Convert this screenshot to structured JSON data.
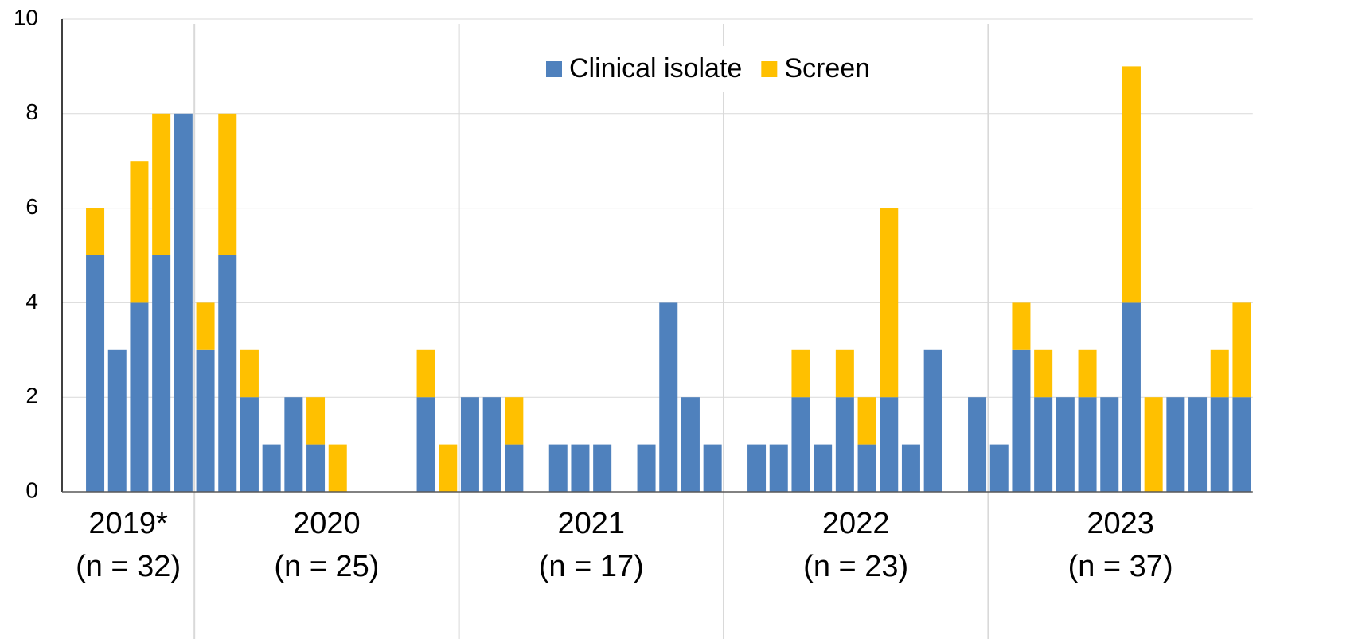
{
  "chart_data": {
    "type": "stacked_bar",
    "groups": [
      {
        "label": "2019*",
        "note": "(n = 32)"
      },
      {
        "label": "2020",
        "note": "(n = 25)"
      },
      {
        "label": "2021",
        "note": "(n = 17)"
      },
      {
        "label": "2022",
        "note": "(n = 23)"
      },
      {
        "label": "2023",
        "note": "(n = 37)"
      }
    ],
    "series": [
      {
        "name": "Clinical isolate",
        "color": "#4f81bd",
        "values": [
          [
            0,
            5,
            3,
            4,
            5,
            8
          ],
          [
            3,
            5,
            2,
            1,
            2,
            1,
            0,
            0,
            0,
            0,
            2,
            0
          ],
          [
            2,
            2,
            1,
            0,
            1,
            1,
            1,
            0,
            1,
            4,
            2,
            1
          ],
          [
            0,
            1,
            1,
            2,
            1,
            2,
            1,
            2,
            1,
            3,
            0,
            2
          ],
          [
            1,
            3,
            2,
            2,
            2,
            2,
            4,
            0,
            2,
            2,
            2,
            2
          ]
        ]
      },
      {
        "name": "Screen",
        "color": "#ffc000",
        "values": [
          [
            0,
            1,
            0,
            3,
            3,
            0
          ],
          [
            1,
            3,
            1,
            0,
            0,
            1,
            1,
            0,
            0,
            0,
            1,
            1
          ],
          [
            0,
            0,
            1,
            0,
            0,
            0,
            0,
            0,
            0,
            0,
            0,
            0
          ],
          [
            0,
            0,
            0,
            1,
            0,
            1,
            1,
            4,
            0,
            0,
            0,
            0
          ],
          [
            0,
            1,
            1,
            0,
            1,
            0,
            5,
            2,
            0,
            0,
            1,
            2
          ]
        ]
      }
    ],
    "ylim": [
      0,
      10
    ],
    "yticks": [
      0,
      2,
      4,
      6,
      8,
      10
    ],
    "grid": true,
    "legend": "top"
  }
}
